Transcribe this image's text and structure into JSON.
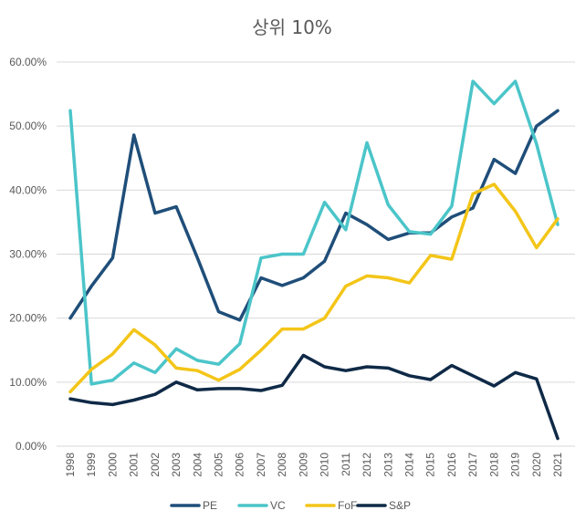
{
  "chart_data": {
    "type": "line",
    "title": "상위 10%",
    "xlabel": "",
    "ylabel": "",
    "ylim": [
      0,
      60
    ],
    "yticks": [
      "0.00%",
      "10.00%",
      "20.00%",
      "30.00%",
      "40.00%",
      "50.00%",
      "60.00%"
    ],
    "grid": true,
    "legend_position": "bottom",
    "categories": [
      "1998",
      "1999",
      "2000",
      "2001",
      "2002",
      "2003",
      "2004",
      "2005",
      "2006",
      "2007",
      "2008",
      "2009",
      "2010",
      "2011",
      "2012",
      "2013",
      "2014",
      "2015",
      "2016",
      "2017",
      "2018",
      "2019",
      "2020",
      "2021"
    ],
    "series": [
      {
        "name": "PE",
        "color": "#1f4e79",
        "values": [
          20.0,
          25.0,
          29.4,
          48.6,
          36.4,
          37.4,
          29.4,
          21.0,
          19.7,
          26.3,
          25.1,
          26.3,
          28.9,
          36.4,
          34.6,
          32.3,
          33.3,
          33.3,
          35.8,
          37.2,
          44.8,
          42.6,
          50.0,
          52.4
        ]
      },
      {
        "name": "VC",
        "color": "#4bc5c9",
        "values": [
          52.4,
          9.7,
          10.3,
          13.0,
          11.5,
          15.2,
          13.4,
          12.8,
          16.0,
          29.4,
          30.0,
          30.0,
          38.1,
          33.8,
          47.4,
          37.7,
          33.5,
          33.1,
          37.5,
          57.0,
          53.5,
          57.0,
          47.2,
          34.6
        ]
      },
      {
        "name": "FoF",
        "color": "#f3c518",
        "values": [
          8.5,
          12.0,
          14.4,
          18.2,
          15.8,
          12.2,
          11.8,
          10.3,
          12.0,
          15.0,
          18.3,
          18.3,
          20.0,
          25.0,
          26.6,
          26.3,
          25.5,
          29.8,
          29.2,
          39.4,
          40.9,
          36.7,
          31.0,
          35.5
        ]
      },
      {
        "name": "S&P",
        "color": "#0f2a47",
        "values": [
          7.4,
          6.8,
          6.5,
          7.2,
          8.1,
          10.0,
          8.8,
          9.0,
          9.0,
          8.7,
          9.5,
          14.2,
          12.4,
          11.8,
          12.4,
          12.2,
          11.0,
          10.4,
          12.6,
          11.0,
          9.4,
          11.5,
          10.5,
          1.2
        ]
      }
    ]
  }
}
